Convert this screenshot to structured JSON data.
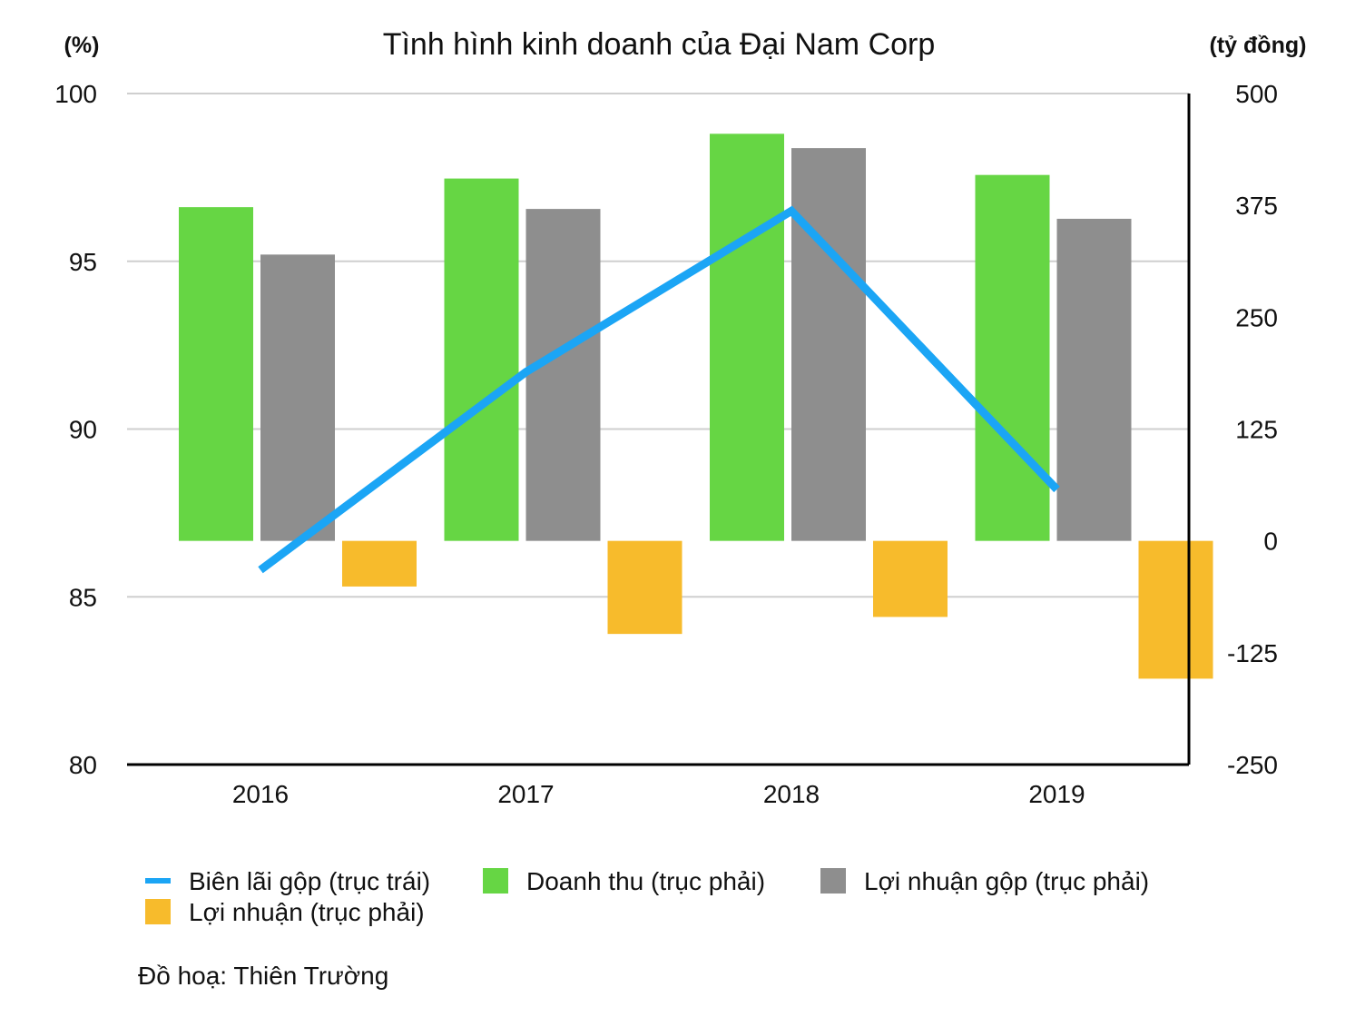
{
  "chart_data": {
    "type": "bar",
    "title": "Tình hình kinh doanh của Đại Nam Corp",
    "categories": [
      "2016",
      "2017",
      "2018",
      "2019"
    ],
    "left_axis": {
      "unit": "(%)",
      "ticks": [
        "80",
        "85",
        "90",
        "95",
        "100"
      ],
      "range": [
        80,
        100
      ]
    },
    "right_axis": {
      "unit": "(tỷ đồng)",
      "ticks": [
        "-250",
        "-125",
        "0",
        "125",
        "250",
        "375",
        "500"
      ],
      "range": [
        -250,
        500
      ]
    },
    "series": [
      {
        "name": "Doanh thu (trục phải)",
        "type": "bar",
        "axis": "right",
        "color": "#66d644",
        "values": [
          373,
          405,
          455,
          409
        ]
      },
      {
        "name": "Lợi nhuận gộp (trục phải)",
        "type": "bar",
        "axis": "right",
        "color": "#8e8e8e",
        "values": [
          320,
          371,
          439,
          360
        ]
      },
      {
        "name": "Lợi nhuận (trục phải)",
        "type": "bar",
        "axis": "right",
        "color": "#f7bb2c",
        "values": [
          -51,
          -104,
          -85,
          -154
        ]
      },
      {
        "name": "Biên lãi gộp (trục trái)",
        "type": "line",
        "axis": "left",
        "color": "#1ba5f5",
        "values": [
          85.8,
          91.7,
          96.5,
          88.2
        ]
      }
    ],
    "grid": true,
    "legend_order": [
      "Biên lãi gộp (trục trái)",
      "Doanh thu (trục phải)",
      "Lợi nhuận gộp (trục phải)",
      "Lợi nhuận (trục phải)"
    ],
    "legend_position": "bottom"
  },
  "credit": "Đồ hoạ: Thiên Trường"
}
